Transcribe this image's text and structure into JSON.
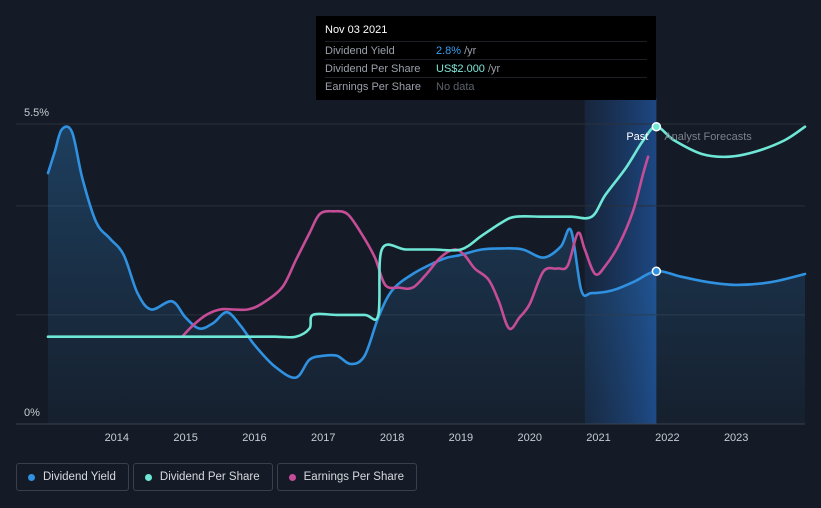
{
  "tooltip": {
    "date": "Nov 03 2021",
    "rows": [
      {
        "label": "Dividend Yield",
        "value": "2.8%",
        "unit": "/yr"
      },
      {
        "label": "Dividend Per Share",
        "value": "US$2.000",
        "unit": "/yr"
      },
      {
        "label": "Earnings Per Share",
        "value": "No data",
        "unit": ""
      }
    ]
  },
  "legend": [
    {
      "label": "Dividend Yield",
      "color": "#2f91e0"
    },
    {
      "label": "Dividend Per Share",
      "color": "#6ee7d6"
    },
    {
      "label": "Earnings Per Share",
      "color": "#c54d97"
    }
  ],
  "chart_data": {
    "type": "line",
    "x_range": [
      2013.0,
      2024.0
    ],
    "x_ticks": [
      "2014",
      "2015",
      "2016",
      "2017",
      "2018",
      "2019",
      "2020",
      "2021",
      "2022",
      "2023"
    ],
    "y_range": [
      0,
      5.5
    ],
    "y_ticks": [
      "5.5%",
      "0%"
    ],
    "region_labels": {
      "past": "Past",
      "forecast": "Analyst Forecasts"
    },
    "forecast_start": 2020.8,
    "current_date": 2021.84,
    "series": [
      {
        "name": "Dividend Yield",
        "color": "#2f91e0",
        "points": [
          [
            2013.0,
            4.6
          ],
          [
            2013.1,
            5.0
          ],
          [
            2013.2,
            5.4
          ],
          [
            2013.35,
            5.35
          ],
          [
            2013.5,
            4.5
          ],
          [
            2013.7,
            3.7
          ],
          [
            2013.9,
            3.4
          ],
          [
            2014.1,
            3.1
          ],
          [
            2014.3,
            2.4
          ],
          [
            2014.5,
            2.1
          ],
          [
            2014.8,
            2.25
          ],
          [
            2015.0,
            1.95
          ],
          [
            2015.2,
            1.75
          ],
          [
            2015.4,
            1.85
          ],
          [
            2015.6,
            2.05
          ],
          [
            2015.8,
            1.8
          ],
          [
            2016.0,
            1.45
          ],
          [
            2016.3,
            1.05
          ],
          [
            2016.6,
            0.85
          ],
          [
            2016.8,
            1.18
          ],
          [
            2017.0,
            1.25
          ],
          [
            2017.2,
            1.25
          ],
          [
            2017.4,
            1.1
          ],
          [
            2017.6,
            1.25
          ],
          [
            2017.8,
            1.95
          ],
          [
            2018.0,
            2.45
          ],
          [
            2018.3,
            2.75
          ],
          [
            2018.6,
            2.95
          ],
          [
            2018.8,
            3.05
          ],
          [
            2019.0,
            3.1
          ],
          [
            2019.3,
            3.2
          ],
          [
            2019.6,
            3.22
          ],
          [
            2019.9,
            3.2
          ],
          [
            2020.2,
            3.05
          ],
          [
            2020.45,
            3.25
          ],
          [
            2020.6,
            3.55
          ],
          [
            2020.75,
            2.45
          ],
          [
            2020.9,
            2.4
          ],
          [
            2021.2,
            2.45
          ],
          [
            2021.5,
            2.6
          ],
          [
            2021.84,
            2.8
          ],
          [
            2022.2,
            2.7
          ],
          [
            2022.6,
            2.6
          ],
          [
            2023.0,
            2.55
          ],
          [
            2023.5,
            2.6
          ],
          [
            2024.0,
            2.75
          ]
        ]
      },
      {
        "name": "Dividend Per Share",
        "color": "#6ee7d6",
        "points": [
          [
            2013.0,
            1.6
          ],
          [
            2013.5,
            1.6
          ],
          [
            2014.0,
            1.6
          ],
          [
            2014.5,
            1.6
          ],
          [
            2015.0,
            1.6
          ],
          [
            2015.5,
            1.6
          ],
          [
            2016.0,
            1.6
          ],
          [
            2016.3,
            1.6
          ],
          [
            2016.6,
            1.6
          ],
          [
            2016.8,
            1.75
          ],
          [
            2016.85,
            2.0
          ],
          [
            2017.2,
            2.0
          ],
          [
            2017.6,
            2.0
          ],
          [
            2017.8,
            2.0
          ],
          [
            2017.85,
            3.2
          ],
          [
            2018.2,
            3.2
          ],
          [
            2018.6,
            3.2
          ],
          [
            2019.0,
            3.2
          ],
          [
            2019.3,
            3.45
          ],
          [
            2019.6,
            3.7
          ],
          [
            2019.8,
            3.8
          ],
          [
            2020.2,
            3.8
          ],
          [
            2020.6,
            3.8
          ],
          [
            2020.9,
            3.8
          ],
          [
            2021.1,
            4.2
          ],
          [
            2021.4,
            4.7
          ],
          [
            2021.65,
            5.2
          ],
          [
            2021.84,
            5.45
          ],
          [
            2022.1,
            5.2
          ],
          [
            2022.5,
            4.95
          ],
          [
            2022.9,
            4.9
          ],
          [
            2023.3,
            5.0
          ],
          [
            2023.7,
            5.2
          ],
          [
            2024.0,
            5.45
          ]
        ]
      },
      {
        "name": "Earnings Per Share",
        "color": "#c54d97",
        "points": [
          [
            2014.95,
            1.6
          ],
          [
            2015.1,
            1.8
          ],
          [
            2015.3,
            2.0
          ],
          [
            2015.5,
            2.1
          ],
          [
            2015.7,
            2.1
          ],
          [
            2015.9,
            2.1
          ],
          [
            2016.1,
            2.2
          ],
          [
            2016.4,
            2.5
          ],
          [
            2016.6,
            3.0
          ],
          [
            2016.8,
            3.5
          ],
          [
            2016.95,
            3.85
          ],
          [
            2017.15,
            3.9
          ],
          [
            2017.35,
            3.85
          ],
          [
            2017.55,
            3.5
          ],
          [
            2017.75,
            3.05
          ],
          [
            2017.9,
            2.55
          ],
          [
            2018.1,
            2.5
          ],
          [
            2018.3,
            2.5
          ],
          [
            2018.5,
            2.75
          ],
          [
            2018.7,
            3.05
          ],
          [
            2018.9,
            3.2
          ],
          [
            2019.05,
            3.1
          ],
          [
            2019.2,
            2.85
          ],
          [
            2019.4,
            2.65
          ],
          [
            2019.55,
            2.25
          ],
          [
            2019.7,
            1.75
          ],
          [
            2019.85,
            1.95
          ],
          [
            2020.0,
            2.2
          ],
          [
            2020.2,
            2.8
          ],
          [
            2020.4,
            2.85
          ],
          [
            2020.55,
            2.9
          ],
          [
            2020.7,
            3.5
          ],
          [
            2020.8,
            3.2
          ],
          [
            2020.95,
            2.75
          ],
          [
            2021.1,
            2.9
          ],
          [
            2021.3,
            3.3
          ],
          [
            2021.5,
            3.9
          ],
          [
            2021.65,
            4.6
          ],
          [
            2021.72,
            4.9
          ]
        ]
      }
    ]
  }
}
